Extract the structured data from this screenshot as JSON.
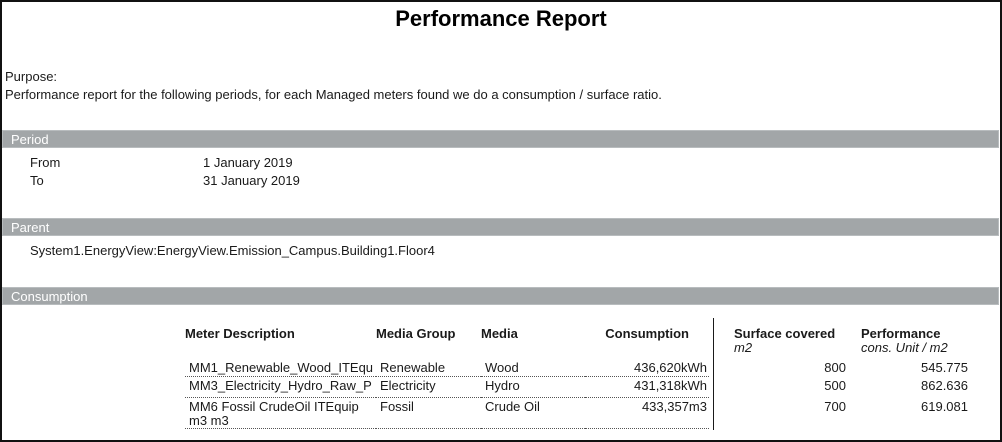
{
  "report": {
    "title": "Performance Report",
    "purpose_label": "Purpose:",
    "purpose_text": "Performance report for the following periods, for each Managed meters found we do a consumption / surface ratio."
  },
  "sections": {
    "period": {
      "header": "Period",
      "from_label": "From",
      "from_value": "1 January 2019",
      "to_label": "To",
      "to_value": "31 January 2019"
    },
    "parent": {
      "header": "Parent",
      "path": "System1.EnergyView:EnergyView.Emission_Campus.Building1.Floor4"
    },
    "consumption": {
      "header": "Consumption",
      "table": {
        "headers": {
          "meter": "Meter Description",
          "media_group": "Media Group",
          "media": "Media",
          "consumption": "Consumption",
          "surface": "Surface covered",
          "surface_unit": "m2",
          "performance": "Performance",
          "performance_unit": "cons. Unit / m2"
        },
        "rows": [
          {
            "meter": "MM1_Renewable_Wood_ITEqu",
            "media_group": "Renewable",
            "media": "Wood",
            "consumption": "436,620kWh",
            "surface": "800",
            "performance": "545.775"
          },
          {
            "meter": "MM3_Electricity_Hydro_Raw_P",
            "media_group": "Electricity",
            "media": "Hydro",
            "consumption": "431,318kWh",
            "surface": "500",
            "performance": "862.636"
          },
          {
            "meter": "MM6 Fossil CrudeOil ITEquip m3 m3",
            "media_group": "Fossil",
            "media": "Crude Oil",
            "consumption": "433,357m3",
            "surface": "700",
            "performance": "619.081"
          }
        ]
      }
    }
  },
  "colors": {
    "section_bar": "#a2a6a8",
    "section_bar_text": "#ffffff",
    "page_border": "#111111",
    "text": "#1a1a1a"
  }
}
